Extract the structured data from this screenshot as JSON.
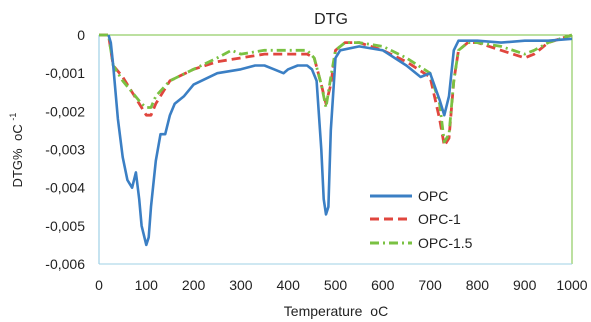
{
  "chart_data": {
    "type": "line",
    "title": "DTG",
    "xlabel": "Temperature",
    "xlabel_unit": "oC",
    "ylabel": "DTG%",
    "ylabel_unit": "oC",
    "ylabel_unit_exponent": "-1",
    "xlim": [
      0,
      1000
    ],
    "ylim": [
      -0.006,
      0
    ],
    "x_ticks": [
      0,
      100,
      200,
      300,
      400,
      500,
      600,
      700,
      800,
      900,
      1000
    ],
    "x_tick_labels": [
      "0",
      "100",
      "200",
      "300",
      "400",
      "500",
      "600",
      "700",
      "800",
      "900",
      "1000"
    ],
    "y_ticks": [
      0,
      -0.001,
      -0.002,
      -0.003,
      -0.004,
      -0.005,
      -0.006
    ],
    "y_tick_labels": [
      "0",
      "-0,001",
      "-0,002",
      "-0,003",
      "-0,004",
      "-0,005",
      "-0,006"
    ],
    "grid": false,
    "legend_position": "bottom-right",
    "series": [
      {
        "name": "OPC",
        "color": "#3b7fc4",
        "dash": "solid",
        "x": [
          20,
          25,
          30,
          40,
          50,
          60,
          70,
          78,
          85,
          90,
          100,
          105,
          110,
          120,
          130,
          140,
          150,
          160,
          180,
          200,
          250,
          300,
          330,
          350,
          370,
          390,
          400,
          420,
          440,
          450,
          460,
          470,
          475,
          480,
          485,
          490,
          500,
          510,
          550,
          600,
          650,
          680,
          700,
          720,
          730,
          740,
          750,
          760,
          800,
          850,
          900,
          950,
          1000
        ],
        "y": [
          0,
          -0.0002,
          -0.0008,
          -0.0022,
          -0.0032,
          -0.0038,
          -0.004,
          -0.0036,
          -0.0043,
          -0.005,
          -0.0055,
          -0.0053,
          -0.0045,
          -0.0033,
          -0.0026,
          -0.0026,
          -0.0021,
          -0.0018,
          -0.0016,
          -0.0013,
          -0.001,
          -0.0009,
          -0.0008,
          -0.0008,
          -0.0009,
          -0.001,
          -0.0009,
          -0.0008,
          -0.0008,
          -0.0009,
          -0.0012,
          -0.003,
          -0.0043,
          -0.0047,
          -0.0045,
          -0.0025,
          -0.0006,
          -0.0004,
          -0.0003,
          -0.0004,
          -0.0008,
          -0.0011,
          -0.001,
          -0.0017,
          -0.0021,
          -0.0016,
          -0.0004,
          -0.00015,
          -0.00015,
          -0.0002,
          -0.00015,
          -0.00015,
          -0.0001
        ]
      },
      {
        "name": "OPC-1",
        "color": "#e0463e",
        "dash": "dashed",
        "x": [
          0,
          20,
          30,
          50,
          70,
          90,
          100,
          110,
          120,
          150,
          200,
          250,
          300,
          350,
          400,
          420,
          440,
          455,
          470,
          480,
          490,
          500,
          520,
          550,
          600,
          650,
          700,
          720,
          730,
          740,
          750,
          760,
          780,
          800,
          850,
          900,
          920,
          950,
          1000
        ],
        "y": [
          0,
          0,
          -0.0008,
          -0.0011,
          -0.0015,
          -0.0019,
          -0.0021,
          -0.0021,
          -0.0018,
          -0.0012,
          -0.0009,
          -0.0007,
          -0.0006,
          -0.0005,
          -0.0005,
          -0.0005,
          -0.0005,
          -0.0006,
          -0.0013,
          -0.0018,
          -0.0013,
          -0.0004,
          -0.0002,
          -0.0002,
          -0.0004,
          -0.0007,
          -0.0011,
          -0.0022,
          -0.0029,
          -0.0027,
          -0.0012,
          -0.0004,
          -0.0002,
          -0.0002,
          -0.0004,
          -0.0006,
          -0.0005,
          -0.0002,
          0
        ]
      },
      {
        "name": "OPC-1.5",
        "color": "#7ac142",
        "dash": "dashdot",
        "x": [
          0,
          20,
          30,
          50,
          70,
          90,
          100,
          110,
          120,
          150,
          200,
          250,
          280,
          300,
          350,
          400,
          420,
          440,
          455,
          470,
          480,
          490,
          500,
          520,
          550,
          600,
          650,
          700,
          720,
          730,
          740,
          750,
          760,
          780,
          800,
          850,
          900,
          920,
          950,
          1000
        ],
        "y": [
          0,
          0,
          -0.0008,
          -0.0012,
          -0.0015,
          -0.0018,
          -0.0019,
          -0.0019,
          -0.0016,
          -0.0012,
          -0.0009,
          -0.0006,
          -0.0004,
          -0.0005,
          -0.0004,
          -0.0004,
          -0.0004,
          -0.0004,
          -0.0006,
          -0.0013,
          -0.0019,
          -0.0011,
          -0.0004,
          -0.0002,
          -0.0002,
          -0.0003,
          -0.0006,
          -0.001,
          -0.0018,
          -0.0028,
          -0.0026,
          -0.0012,
          -0.0004,
          -0.0002,
          -0.0002,
          -0.0003,
          -0.0005,
          -0.0004,
          -0.0002,
          0
        ]
      }
    ]
  }
}
